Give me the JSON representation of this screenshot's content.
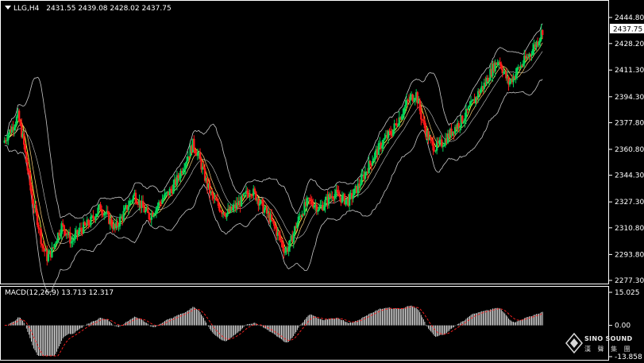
{
  "header": {
    "symbol": "LLG,H4",
    "ohlc": "2431.55 2439.08 2428.02 2437.75"
  },
  "macd": {
    "label": "MACD(12,26,9) 13.713 12.317",
    "axis_labels": [
      "15.025",
      "0.00",
      "-13.858"
    ]
  },
  "price_axis": {
    "labels": [
      "2444.80",
      "2428.20",
      "2411.30",
      "2394.30",
      "2377.80",
      "2360.80",
      "2344.30",
      "2327.30",
      "2310.80",
      "2293.80",
      "2277.30"
    ],
    "current_price": "2437.75"
  },
  "logo": {
    "brand": "SINO SOUND",
    "sub": "漢 聲 集 團"
  },
  "colors": {
    "bull": "#00d35a",
    "bear": "#ff1a1a",
    "bands": "#c8c8c8",
    "ma": "#ffff40",
    "grid_frame": "#ffffff",
    "signal": "#ff2020",
    "histogram": "#ffffff"
  },
  "chart_data": [
    {
      "type": "candlestick",
      "ylim": [
        2277.3,
        2444.8
      ],
      "close_series": [
        2365,
        2371,
        2376,
        2382,
        2368,
        2348,
        2328,
        2316,
        2300,
        2292,
        2296,
        2305,
        2312,
        2308,
        2302,
        2306,
        2310,
        2312,
        2315,
        2320,
        2324,
        2320,
        2315,
        2310,
        2316,
        2321,
        2327,
        2332,
        2327,
        2322,
        2318,
        2322,
        2326,
        2330,
        2333,
        2337,
        2343,
        2350,
        2357,
        2364,
        2358,
        2348,
        2338,
        2330,
        2326,
        2322,
        2320,
        2322,
        2325,
        2328,
        2332,
        2335,
        2331,
        2326,
        2321,
        2316,
        2310,
        2303,
        2296,
        2300,
        2310,
        2318,
        2324,
        2328,
        2326,
        2323,
        2326,
        2330,
        2333,
        2331,
        2329,
        2328,
        2332,
        2337,
        2343,
        2349,
        2355,
        2360,
        2365,
        2369,
        2372,
        2378,
        2384,
        2390,
        2394,
        2396,
        2382,
        2372,
        2365,
        2362,
        2364,
        2367,
        2371,
        2375,
        2378,
        2382,
        2387,
        2392,
        2398,
        2402,
        2408,
        2414,
        2418,
        2410,
        2403,
        2407,
        2412,
        2416,
        2420,
        2425,
        2430,
        2437
      ]
    },
    {
      "type": "macd",
      "ylim": [
        -13.858,
        15.025
      ]
    }
  ]
}
